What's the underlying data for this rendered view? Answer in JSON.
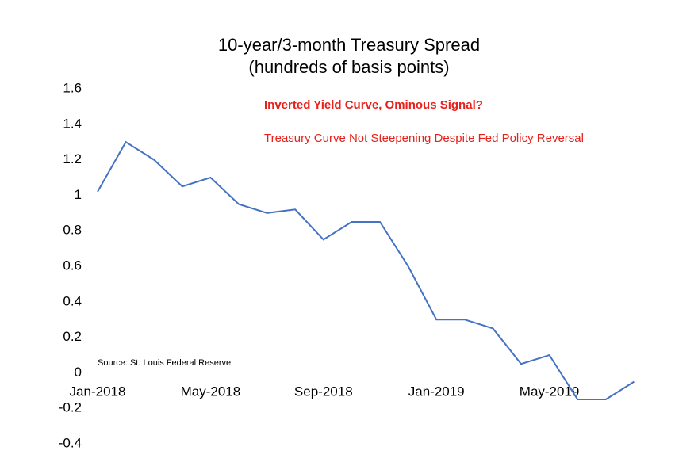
{
  "chart_data": {
    "type": "line",
    "title": "10-year/3-month Treasury Spread",
    "subtitle": "(hundreds of basis points)",
    "annotations": [
      "Inverted Yield Curve, Ominous Signal?",
      "Treasury Curve Not Steepening Despite Fed Policy Reversal"
    ],
    "source": "Source: St. Louis Federal Reserve",
    "x": [
      "Jan-2018",
      null,
      null,
      null,
      "May-2018",
      null,
      null,
      null,
      "Sep-2018",
      null,
      null,
      null,
      "Jan-2019",
      null,
      null,
      null,
      "May-2019",
      null,
      null,
      null
    ],
    "series": [
      {
        "name": "10-year/3-month spread",
        "color": "#4472c4",
        "values": [
          1.02,
          1.3,
          1.2,
          1.05,
          1.1,
          0.95,
          0.9,
          0.92,
          0.75,
          0.85,
          0.85,
          0.6,
          0.3,
          0.3,
          0.25,
          0.05,
          0.1,
          -0.15,
          -0.15,
          -0.05
        ]
      }
    ],
    "ylim": [
      -0.4,
      1.6
    ],
    "yticks": [
      {
        "value": -0.4,
        "label": "-0.4"
      },
      {
        "value": -0.2,
        "label": "-0.2"
      },
      0,
      0.2,
      0.4,
      0.6,
      0.8,
      1,
      1.2,
      1.4,
      1.6
    ],
    "annotation_color": "#e8201a",
    "grid": false
  }
}
